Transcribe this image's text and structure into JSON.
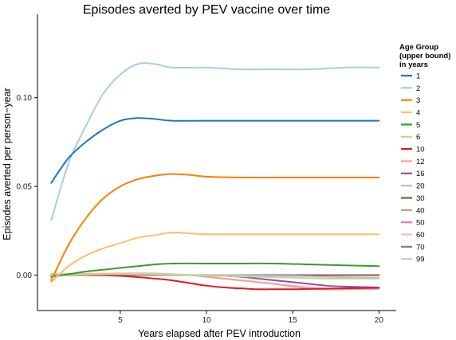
{
  "chart_data": {
    "type": "line",
    "title": "Episodes averted by PEV vaccine over time",
    "xlabel": "Years elapsed after PEV introduction",
    "ylabel": "Episodes averted per person−year",
    "xlim": [
      0.2,
      21
    ],
    "ylim": [
      -0.02,
      0.147
    ],
    "xticks": [
      5,
      10,
      15,
      20
    ],
    "yticks": [
      0.0,
      0.05,
      0.1
    ],
    "ytick_labels": [
      "0.00",
      "0.05",
      "0.10"
    ],
    "grid": false,
    "legend": {
      "title": [
        "Age Group",
        "(upper bound)",
        "in years"
      ],
      "placement": "right"
    },
    "series": [
      {
        "name": "1",
        "color": "#1f78b4",
        "x": [
          1,
          2,
          3,
          4,
          5,
          6,
          7,
          8,
          10,
          12,
          14,
          16,
          18,
          20
        ],
        "values": [
          0.052,
          0.066,
          0.075,
          0.082,
          0.087,
          0.0885,
          0.088,
          0.087,
          0.087,
          0.087,
          0.087,
          0.087,
          0.087,
          0.087
        ]
      },
      {
        "name": "2",
        "color": "#a6cee3",
        "x": [
          1,
          2,
          3,
          4,
          5,
          6,
          7,
          8,
          10,
          12,
          14,
          16,
          18,
          20
        ],
        "values": [
          0.031,
          0.063,
          0.084,
          0.102,
          0.113,
          0.119,
          0.119,
          0.117,
          0.117,
          0.116,
          0.116,
          0.116,
          0.117,
          0.117
        ]
      },
      {
        "name": "3",
        "color": "#ff7f00",
        "x": [
          1,
          2,
          3,
          4,
          5,
          6,
          7,
          8,
          9,
          10,
          12,
          14,
          16,
          18,
          20
        ],
        "values": [
          -0.003,
          0.017,
          0.032,
          0.043,
          0.05,
          0.054,
          0.056,
          0.057,
          0.0565,
          0.0555,
          0.055,
          0.055,
          0.055,
          0.055,
          0.055
        ]
      },
      {
        "name": "4",
        "color": "#fdbf6f",
        "x": [
          1,
          2,
          3,
          4,
          5,
          6,
          7,
          8,
          9,
          10,
          12,
          14,
          16,
          18,
          20
        ],
        "values": [
          -0.004,
          0.005,
          0.011,
          0.015,
          0.018,
          0.021,
          0.0225,
          0.024,
          0.0235,
          0.023,
          0.023,
          0.023,
          0.023,
          0.023,
          0.023
        ]
      },
      {
        "name": "5",
        "color": "#33a02c",
        "x": [
          1,
          2,
          3,
          4,
          5,
          6,
          7,
          8,
          10,
          12,
          14,
          16,
          18,
          20
        ],
        "values": [
          -0.001,
          0.0005,
          0.002,
          0.003,
          0.004,
          0.005,
          0.006,
          0.0065,
          0.0065,
          0.0065,
          0.0065,
          0.006,
          0.0055,
          0.005
        ]
      },
      {
        "name": "6",
        "color": "#b2df8a",
        "x": [
          1,
          3,
          5,
          7,
          9,
          11,
          13,
          15,
          17,
          20
        ],
        "values": [
          0.0,
          0.0003,
          0.0005,
          0.0005,
          0.0,
          -0.0005,
          -0.001,
          -0.0015,
          -0.002,
          -0.002
        ]
      },
      {
        "name": "10",
        "color": "#e31a1c",
        "x": [
          1,
          3,
          5,
          7,
          8,
          9,
          10,
          11,
          12,
          13,
          14,
          15,
          16,
          18,
          20
        ],
        "values": [
          0.0,
          0.0,
          -0.0005,
          -0.002,
          -0.003,
          -0.0045,
          -0.006,
          -0.007,
          -0.0075,
          -0.008,
          -0.008,
          -0.008,
          -0.0078,
          -0.0075,
          -0.0072
        ]
      },
      {
        "name": "12",
        "color": "#fb9a99",
        "x": [
          1,
          3,
          5,
          7,
          9,
          10,
          11,
          12,
          13,
          14,
          15,
          16,
          17,
          18,
          20
        ],
        "values": [
          0.0005,
          0.0005,
          0.0005,
          0.0003,
          0.0,
          -0.001,
          -0.002,
          -0.003,
          -0.004,
          -0.005,
          -0.0065,
          -0.0075,
          -0.008,
          -0.008,
          -0.0075
        ]
      },
      {
        "name": "16",
        "color": "#8c52a8",
        "x": [
          1,
          3,
          5,
          7,
          9,
          11,
          12,
          13,
          14,
          15,
          16,
          17,
          18,
          20
        ],
        "values": [
          0.0,
          0.0,
          0.0,
          0.0,
          0.0,
          -0.0005,
          -0.001,
          -0.002,
          -0.003,
          -0.004,
          -0.005,
          -0.006,
          -0.0065,
          -0.007
        ]
      },
      {
        "name": "20",
        "color": "#cab2d6",
        "x": [
          1,
          5,
          10,
          15,
          17,
          20
        ],
        "values": [
          0.0,
          0.0,
          0.0,
          -0.0005,
          -0.001,
          -0.0015
        ]
      },
      {
        "name": "30",
        "color": "#8c564b",
        "x": [
          1,
          5,
          10,
          15,
          20
        ],
        "values": [
          0.0,
          0.0,
          0.0,
          0.0,
          0.0
        ]
      },
      {
        "name": "40",
        "color": "#c49c94",
        "x": [
          1,
          5,
          10,
          15,
          20
        ],
        "values": [
          0.0,
          0.0,
          0.0,
          0.0,
          0.0
        ]
      },
      {
        "name": "50",
        "color": "#e377c2",
        "x": [
          1,
          5,
          10,
          15,
          20
        ],
        "values": [
          0.0,
          0.0,
          0.0,
          0.0,
          0.0
        ]
      },
      {
        "name": "60",
        "color": "#f7b6d2",
        "x": [
          1,
          3,
          5,
          7,
          9,
          11,
          13,
          15,
          17,
          20
        ],
        "values": [
          0.0005,
          0.0008,
          0.001,
          0.001,
          0.0,
          -0.002,
          -0.004,
          -0.006,
          -0.0075,
          -0.008
        ]
      },
      {
        "name": "70",
        "color": "#7f7f7f",
        "x": [
          1,
          5,
          10,
          15,
          20
        ],
        "values": [
          0.0,
          0.0,
          0.0,
          0.0,
          0.0
        ]
      },
      {
        "name": "99",
        "color": "#c7c7c7",
        "x": [
          1,
          5,
          10,
          15,
          20
        ],
        "values": [
          0.0,
          0.0,
          0.0,
          0.0,
          0.0
        ]
      }
    ]
  }
}
